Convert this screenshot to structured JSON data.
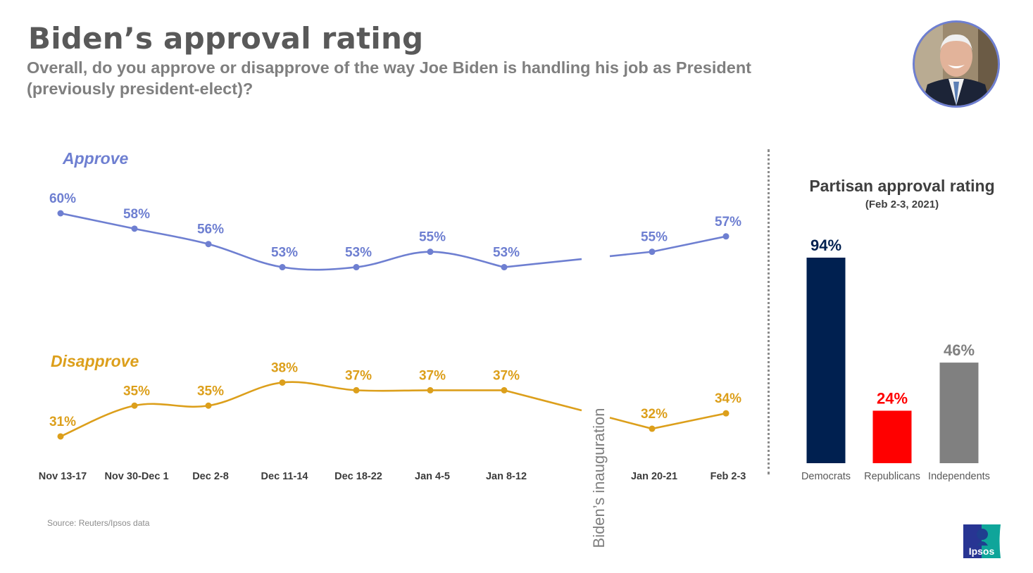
{
  "header": {
    "title": "Biden’s approval rating",
    "subtitle": "Overall, do you approve or disapprove of the way Joe Biden is handling his job as President (previously president-elect)?"
  },
  "footer": {
    "source": "Source: Reuters/Ipsos data",
    "logo_text": "Ipsos"
  },
  "colors": {
    "approve": "#6e7fd1",
    "disapprove": "#dc9f1b",
    "democrats": "#002050",
    "republicans": "#ff0000",
    "independents": "#808080",
    "axis_text": "#3c3c3c",
    "annotation": "#7f7f7f"
  },
  "chart_data": [
    {
      "type": "line",
      "title": "",
      "xlabel": "",
      "ylabel": "",
      "categories": [
        "Nov 13-17",
        "Nov 30-Dec 1",
        "Dec 2-8",
        "Dec 11-14",
        "Dec 18-22",
        "Jan 4-5",
        "Jan 8-12",
        "Jan 20-21",
        "Feb 2-3"
      ],
      "series": [
        {
          "name": "Approve",
          "values": [
            60,
            58,
            56,
            53,
            53,
            55,
            53,
            55,
            57
          ]
        },
        {
          "name": "Disapprove",
          "values": [
            31,
            35,
            35,
            38,
            37,
            37,
            37,
            32,
            34
          ]
        }
      ],
      "value_suffix": "%",
      "gap_after_index": 6,
      "annotation": "Biden’s inauguration",
      "grid": false,
      "legend": "inline-left"
    },
    {
      "type": "bar",
      "title": "Partisan approval rating",
      "subtitle": "(Feb 2-3, 2021)",
      "categories": [
        "Democrats",
        "Republicans",
        "Independents"
      ],
      "values": [
        94,
        24,
        46
      ],
      "value_suffix": "%",
      "ylim": [
        0,
        100
      ],
      "grid": false
    }
  ]
}
